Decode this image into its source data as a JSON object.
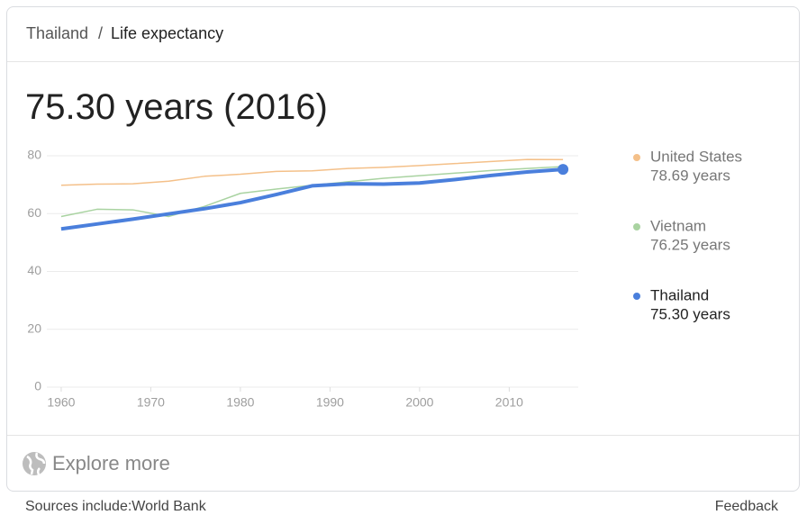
{
  "header": {
    "breadcrumb": [
      "Thailand",
      "Life expectancy"
    ],
    "separator": "/"
  },
  "headline": "75.30 years (2016)",
  "chart_data": {
    "type": "line",
    "x": [
      1960,
      1964,
      1968,
      1972,
      1976,
      1980,
      1984,
      1988,
      1992,
      1996,
      2000,
      2004,
      2008,
      2012,
      2016
    ],
    "series": [
      {
        "name": "United States",
        "color": "#f4c089",
        "label": "78.69 years",
        "values": [
          69.8,
          70.2,
          70.3,
          71.2,
          72.9,
          73.6,
          74.6,
          74.8,
          75.6,
          76.0,
          76.6,
          77.3,
          78.0,
          78.7,
          78.69
        ]
      },
      {
        "name": "Vietnam",
        "color": "#a9d3a1",
        "label": "76.25 years",
        "values": [
          59.0,
          61.5,
          61.3,
          59.0,
          62.5,
          67.0,
          68.5,
          69.8,
          71.0,
          72.2,
          73.1,
          74.0,
          74.9,
          75.6,
          76.25
        ]
      },
      {
        "name": "Thailand",
        "color": "#4a7fdc",
        "label": "75.30 years",
        "values": [
          54.7,
          56.4,
          58.1,
          59.9,
          61.7,
          63.8,
          66.6,
          69.6,
          70.3,
          70.2,
          70.6,
          71.8,
          73.2,
          74.4,
          75.3
        ]
      }
    ],
    "xlim": [
      1958.4,
      2017.7
    ],
    "xticks": [
      1960,
      1970,
      1980,
      1990,
      2000,
      2010
    ],
    "ylim": [
      0,
      80
    ],
    "yticks": [
      0,
      20,
      40,
      60,
      80
    ],
    "grid": true
  },
  "explore": "Explore more",
  "footer": {
    "sources": "Sources include:World Bank",
    "feedback": "Feedback"
  }
}
